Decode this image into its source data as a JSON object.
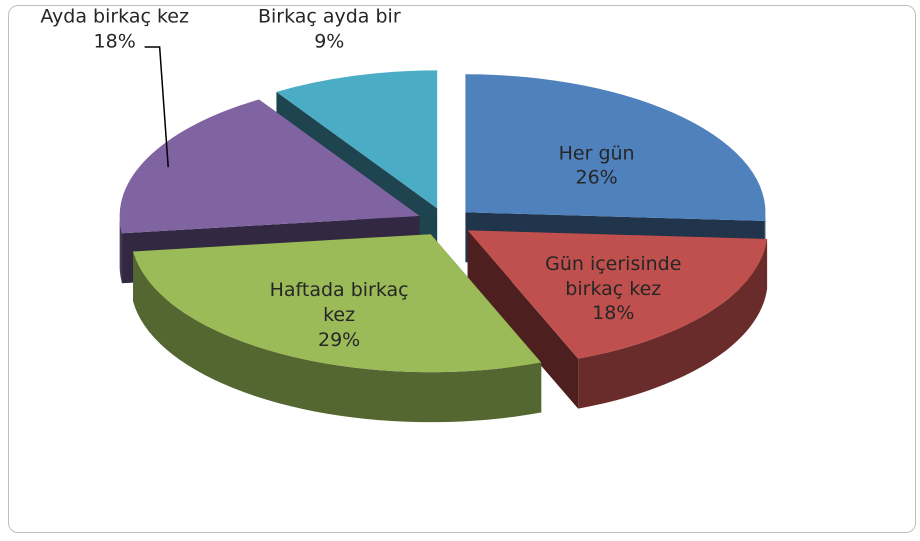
{
  "chart_data": {
    "type": "pie",
    "categories": [
      "Her gün",
      "Gün içerisinde birkaç kez",
      "Haftada birkaç kez",
      "Ayda birkaç kez",
      "Birkaç ayda bir"
    ],
    "values": [
      26,
      18,
      29,
      18,
      9
    ],
    "value_labels": [
      "26%",
      "18%",
      "29%",
      "18%",
      "9%"
    ],
    "colors": [
      "#4f81bd",
      "#c0504d",
      "#9bbb59",
      "#8064a2",
      "#4bacc6"
    ],
    "three_d": true,
    "exploded": true
  }
}
